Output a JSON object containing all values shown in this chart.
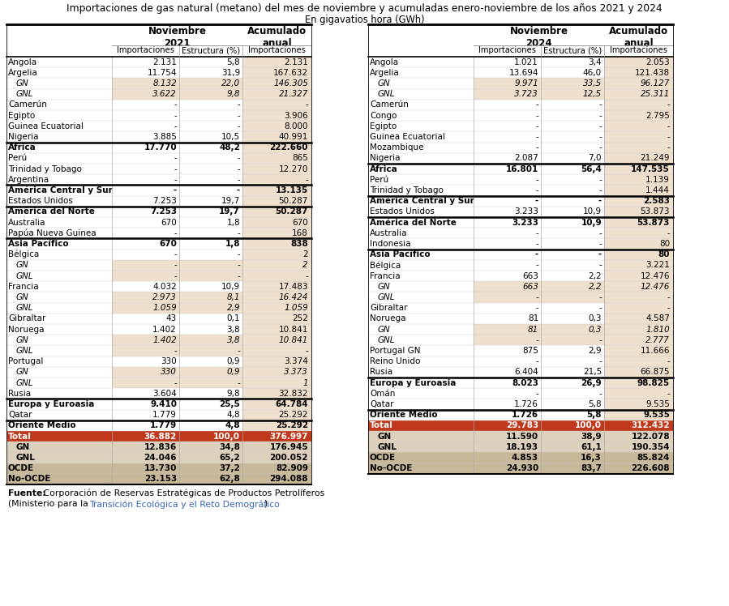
{
  "title_line1": "Importaciones de gas natural (metano) del mes de noviembre y acumuladas enero-noviembre de los años 2021 y 2024",
  "title_line2": "En gigavatios hora (GWh)",
  "left_table": {
    "rows": [
      {
        "label": "Angola",
        "bold": false,
        "italic": false,
        "indent": 0,
        "bg": "white",
        "sub_bg": "white",
        "c1": "2.131",
        "c2": "5,8",
        "c3": "2.131"
      },
      {
        "label": "Argelia",
        "bold": false,
        "italic": false,
        "indent": 0,
        "bg": "white",
        "sub_bg": "white",
        "c1": "11.754",
        "c2": "31,9",
        "c3": "167.632"
      },
      {
        "label": "GN",
        "bold": false,
        "italic": true,
        "indent": 1,
        "bg": "white",
        "sub_bg": "beige",
        "c1": "8.132",
        "c2": "22,0",
        "c3": "146.305"
      },
      {
        "label": "GNL",
        "bold": false,
        "italic": true,
        "indent": 1,
        "bg": "white",
        "sub_bg": "beige",
        "c1": "3.622",
        "c2": "9,8",
        "c3": "21.327"
      },
      {
        "label": "Camerún",
        "bold": false,
        "italic": false,
        "indent": 0,
        "bg": "white",
        "sub_bg": "white",
        "c1": "-",
        "c2": "-",
        "c3": "-"
      },
      {
        "label": "Egipto",
        "bold": false,
        "italic": false,
        "indent": 0,
        "bg": "white",
        "sub_bg": "white",
        "c1": "-",
        "c2": "-",
        "c3": "3.906"
      },
      {
        "label": "Guinea Ecuatorial",
        "bold": false,
        "italic": false,
        "indent": 0,
        "bg": "white",
        "sub_bg": "white",
        "c1": "-",
        "c2": "-",
        "c3": "8.000"
      },
      {
        "label": "Nigeria",
        "bold": false,
        "italic": false,
        "indent": 0,
        "bg": "white",
        "sub_bg": "white",
        "c1": "3.885",
        "c2": "10,5",
        "c3": "40.991"
      },
      {
        "label": "África",
        "bold": true,
        "italic": false,
        "indent": 0,
        "bg": "white",
        "sub_bg": "white",
        "c1": "17.770",
        "c2": "48,2",
        "c3": "222.660",
        "border_top": true
      },
      {
        "label": "Perú",
        "bold": false,
        "italic": false,
        "indent": 0,
        "bg": "white",
        "sub_bg": "white",
        "c1": "-",
        "c2": "-",
        "c3": "865"
      },
      {
        "label": "Trinidad y Tobago",
        "bold": false,
        "italic": false,
        "indent": 0,
        "bg": "white",
        "sub_bg": "white",
        "c1": "-",
        "c2": "-",
        "c3": "12.270"
      },
      {
        "label": "Argentina",
        "bold": false,
        "italic": false,
        "indent": 0,
        "bg": "white",
        "sub_bg": "white",
        "c1": "-",
        "c2": "-",
        "c3": "-"
      },
      {
        "label": "América Central y Sur",
        "bold": true,
        "italic": false,
        "indent": 0,
        "bg": "white",
        "sub_bg": "white",
        "c1": "-",
        "c2": "-",
        "c3": "13.135",
        "border_top": true
      },
      {
        "label": "Estados Unidos",
        "bold": false,
        "italic": false,
        "indent": 0,
        "bg": "white",
        "sub_bg": "white",
        "c1": "7.253",
        "c2": "19,7",
        "c3": "50.287"
      },
      {
        "label": "América del Norte",
        "bold": true,
        "italic": false,
        "indent": 0,
        "bg": "white",
        "sub_bg": "white",
        "c1": "7.253",
        "c2": "19,7",
        "c3": "50.287",
        "border_top": true
      },
      {
        "label": "Australia",
        "bold": false,
        "italic": false,
        "indent": 0,
        "bg": "white",
        "sub_bg": "white",
        "c1": "670",
        "c2": "1,8",
        "c3": "670"
      },
      {
        "label": "Papúa Nueva Guinea",
        "bold": false,
        "italic": false,
        "indent": 0,
        "bg": "white",
        "sub_bg": "white",
        "c1": "-",
        "c2": "-",
        "c3": "168"
      },
      {
        "label": "Asia Pacífico",
        "bold": true,
        "italic": false,
        "indent": 0,
        "bg": "white",
        "sub_bg": "white",
        "c1": "670",
        "c2": "1,8",
        "c3": "838",
        "border_top": true
      },
      {
        "label": "Bélgica",
        "bold": false,
        "italic": false,
        "indent": 0,
        "bg": "white",
        "sub_bg": "white",
        "c1": "-",
        "c2": "-",
        "c3": "2"
      },
      {
        "label": "GN",
        "bold": false,
        "italic": true,
        "indent": 1,
        "bg": "white",
        "sub_bg": "beige",
        "c1": "-",
        "c2": "-",
        "c3": "2"
      },
      {
        "label": "GNL",
        "bold": false,
        "italic": true,
        "indent": 1,
        "bg": "white",
        "sub_bg": "beige",
        "c1": "-",
        "c2": "-",
        "c3": "-"
      },
      {
        "label": "Francia",
        "bold": false,
        "italic": false,
        "indent": 0,
        "bg": "white",
        "sub_bg": "white",
        "c1": "4.032",
        "c2": "10,9",
        "c3": "17.483"
      },
      {
        "label": "GN",
        "bold": false,
        "italic": true,
        "indent": 1,
        "bg": "white",
        "sub_bg": "beige",
        "c1": "2.973",
        "c2": "8,1",
        "c3": "16.424"
      },
      {
        "label": "GNL",
        "bold": false,
        "italic": true,
        "indent": 1,
        "bg": "white",
        "sub_bg": "beige",
        "c1": "1.059",
        "c2": "2,9",
        "c3": "1.059"
      },
      {
        "label": "Gibraltar",
        "bold": false,
        "italic": false,
        "indent": 0,
        "bg": "white",
        "sub_bg": "white",
        "c1": "43",
        "c2": "0,1",
        "c3": "252"
      },
      {
        "label": "Noruega",
        "bold": false,
        "italic": false,
        "indent": 0,
        "bg": "white",
        "sub_bg": "white",
        "c1": "1.402",
        "c2": "3,8",
        "c3": "10.841"
      },
      {
        "label": "GN",
        "bold": false,
        "italic": true,
        "indent": 1,
        "bg": "white",
        "sub_bg": "beige",
        "c1": "1.402",
        "c2": "3,8",
        "c3": "10.841"
      },
      {
        "label": "GNL",
        "bold": false,
        "italic": true,
        "indent": 1,
        "bg": "white",
        "sub_bg": "beige",
        "c1": "-",
        "c2": "-",
        "c3": "-"
      },
      {
        "label": "Portugal",
        "bold": false,
        "italic": false,
        "indent": 0,
        "bg": "white",
        "sub_bg": "white",
        "c1": "330",
        "c2": "0,9",
        "c3": "3.374"
      },
      {
        "label": "GN",
        "bold": false,
        "italic": true,
        "indent": 1,
        "bg": "white",
        "sub_bg": "beige",
        "c1": "330",
        "c2": "0,9",
        "c3": "3.373"
      },
      {
        "label": "GNL",
        "bold": false,
        "italic": true,
        "indent": 1,
        "bg": "white",
        "sub_bg": "beige",
        "c1": "-",
        "c2": "-",
        "c3": "1"
      },
      {
        "label": "Rusia",
        "bold": false,
        "italic": false,
        "indent": 0,
        "bg": "white",
        "sub_bg": "white",
        "c1": "3.604",
        "c2": "9,8",
        "c3": "32.832"
      },
      {
        "label": "Europa y Euroasia",
        "bold": true,
        "italic": false,
        "indent": 0,
        "bg": "white",
        "sub_bg": "white",
        "c1": "9.410",
        "c2": "25,5",
        "c3": "64.784",
        "border_top": true
      },
      {
        "label": "Qatar",
        "bold": false,
        "italic": false,
        "indent": 0,
        "bg": "white",
        "sub_bg": "white",
        "c1": "1.779",
        "c2": "4,8",
        "c3": "25.292"
      },
      {
        "label": "Oriente Medio",
        "bold": true,
        "italic": false,
        "indent": 0,
        "bg": "white",
        "sub_bg": "white",
        "c1": "1.779",
        "c2": "4,8",
        "c3": "25.292",
        "border_top": true
      },
      {
        "label": "Total",
        "bold": true,
        "italic": false,
        "indent": 0,
        "bg": "red",
        "sub_bg": "red",
        "c1": "36.882",
        "c2": "100,0",
        "c3": "376.997"
      },
      {
        "label": "GN",
        "bold": true,
        "italic": false,
        "indent": 1,
        "bg": "lighttan",
        "sub_bg": "lighttan",
        "c1": "12.836",
        "c2": "34,8",
        "c3": "176.945"
      },
      {
        "label": "GNL",
        "bold": true,
        "italic": false,
        "indent": 1,
        "bg": "lighttan",
        "sub_bg": "lighttan",
        "c1": "24.046",
        "c2": "65,2",
        "c3": "200.052"
      },
      {
        "label": "OCDE",
        "bold": true,
        "italic": false,
        "indent": 0,
        "bg": "tan",
        "sub_bg": "tan",
        "c1": "13.730",
        "c2": "37,2",
        "c3": "82.909"
      },
      {
        "label": "No-OCDE",
        "bold": true,
        "italic": false,
        "indent": 0,
        "bg": "tan",
        "sub_bg": "tan",
        "c1": "23.153",
        "c2": "62,8",
        "c3": "294.088"
      }
    ]
  },
  "right_table": {
    "rows": [
      {
        "label": "Angola",
        "bold": false,
        "italic": false,
        "indent": 0,
        "bg": "white",
        "sub_bg": "white",
        "c1": "1.021",
        "c2": "3,4",
        "c3": "2.053"
      },
      {
        "label": "Argelia",
        "bold": false,
        "italic": false,
        "indent": 0,
        "bg": "white",
        "sub_bg": "white",
        "c1": "13.694",
        "c2": "46,0",
        "c3": "121.438"
      },
      {
        "label": "GN",
        "bold": false,
        "italic": true,
        "indent": 1,
        "bg": "white",
        "sub_bg": "beige",
        "c1": "9.971",
        "c2": "33,5",
        "c3": "96.127"
      },
      {
        "label": "GNL",
        "bold": false,
        "italic": true,
        "indent": 1,
        "bg": "white",
        "sub_bg": "beige",
        "c1": "3.723",
        "c2": "12,5",
        "c3": "25.311"
      },
      {
        "label": "Camerún",
        "bold": false,
        "italic": false,
        "indent": 0,
        "bg": "white",
        "sub_bg": "white",
        "c1": "-",
        "c2": "-",
        "c3": "-"
      },
      {
        "label": "Congo",
        "bold": false,
        "italic": false,
        "indent": 0,
        "bg": "white",
        "sub_bg": "white",
        "c1": "-",
        "c2": "-",
        "c3": "2.795"
      },
      {
        "label": "Egipto",
        "bold": false,
        "italic": false,
        "indent": 0,
        "bg": "white",
        "sub_bg": "white",
        "c1": "-",
        "c2": "-",
        "c3": "-"
      },
      {
        "label": "Guinea Ecuatorial",
        "bold": false,
        "italic": false,
        "indent": 0,
        "bg": "white",
        "sub_bg": "white",
        "c1": "-",
        "c2": "-",
        "c3": "-"
      },
      {
        "label": "Mozambique",
        "bold": false,
        "italic": false,
        "indent": 0,
        "bg": "white",
        "sub_bg": "white",
        "c1": "-",
        "c2": "-",
        "c3": "-"
      },
      {
        "label": "Nigeria",
        "bold": false,
        "italic": false,
        "indent": 0,
        "bg": "white",
        "sub_bg": "white",
        "c1": "2.087",
        "c2": "7,0",
        "c3": "21.249"
      },
      {
        "label": "África",
        "bold": true,
        "italic": false,
        "indent": 0,
        "bg": "white",
        "sub_bg": "white",
        "c1": "16.801",
        "c2": "56,4",
        "c3": "147.535",
        "border_top": true
      },
      {
        "label": "Perú",
        "bold": false,
        "italic": false,
        "indent": 0,
        "bg": "white",
        "sub_bg": "white",
        "c1": "-",
        "c2": "-",
        "c3": "1.139"
      },
      {
        "label": "Trinidad y Tobago",
        "bold": false,
        "italic": false,
        "indent": 0,
        "bg": "white",
        "sub_bg": "white",
        "c1": "-",
        "c2": "-",
        "c3": "1.444"
      },
      {
        "label": "América Central y Sur",
        "bold": true,
        "italic": false,
        "indent": 0,
        "bg": "white",
        "sub_bg": "white",
        "c1": "-",
        "c2": "-",
        "c3": "2.583",
        "border_top": true
      },
      {
        "label": "Estados Unidos",
        "bold": false,
        "italic": false,
        "indent": 0,
        "bg": "white",
        "sub_bg": "white",
        "c1": "3.233",
        "c2": "10,9",
        "c3": "53.873"
      },
      {
        "label": "América del Norte",
        "bold": true,
        "italic": false,
        "indent": 0,
        "bg": "white",
        "sub_bg": "white",
        "c1": "3.233",
        "c2": "10,9",
        "c3": "53.873",
        "border_top": true
      },
      {
        "label": "Australia",
        "bold": false,
        "italic": false,
        "indent": 0,
        "bg": "white",
        "sub_bg": "white",
        "c1": "-",
        "c2": "-",
        "c3": "-"
      },
      {
        "label": "Indonesia",
        "bold": false,
        "italic": false,
        "indent": 0,
        "bg": "white",
        "sub_bg": "white",
        "c1": "-",
        "c2": "-",
        "c3": "80"
      },
      {
        "label": "Asia Pacífico",
        "bold": true,
        "italic": false,
        "indent": 0,
        "bg": "white",
        "sub_bg": "white",
        "c1": "-",
        "c2": "-",
        "c3": "80",
        "border_top": true
      },
      {
        "label": "Bélgica",
        "bold": false,
        "italic": false,
        "indent": 0,
        "bg": "white",
        "sub_bg": "white",
        "c1": "-",
        "c2": "-",
        "c3": "3.221"
      },
      {
        "label": "Francia",
        "bold": false,
        "italic": false,
        "indent": 0,
        "bg": "white",
        "sub_bg": "white",
        "c1": "663",
        "c2": "2,2",
        "c3": "12.476"
      },
      {
        "label": "GN",
        "bold": false,
        "italic": true,
        "indent": 1,
        "bg": "white",
        "sub_bg": "beige",
        "c1": "663",
        "c2": "2,2",
        "c3": "12.476"
      },
      {
        "label": "GNL",
        "bold": false,
        "italic": true,
        "indent": 1,
        "bg": "white",
        "sub_bg": "beige",
        "c1": "-",
        "c2": "-",
        "c3": "-"
      },
      {
        "label": "Gibraltar",
        "bold": false,
        "italic": false,
        "indent": 0,
        "bg": "white",
        "sub_bg": "white",
        "c1": "-",
        "c2": "-",
        "c3": "-"
      },
      {
        "label": "Noruega",
        "bold": false,
        "italic": false,
        "indent": 0,
        "bg": "white",
        "sub_bg": "white",
        "c1": "81",
        "c2": "0,3",
        "c3": "4.587"
      },
      {
        "label": "GN",
        "bold": false,
        "italic": true,
        "indent": 1,
        "bg": "white",
        "sub_bg": "beige",
        "c1": "81",
        "c2": "0,3",
        "c3": "1.810"
      },
      {
        "label": "GNL",
        "bold": false,
        "italic": true,
        "indent": 1,
        "bg": "white",
        "sub_bg": "beige",
        "c1": "-",
        "c2": "-",
        "c3": "2.777"
      },
      {
        "label": "Portugal GN",
        "bold": false,
        "italic": false,
        "indent": 0,
        "bg": "white",
        "sub_bg": "white",
        "c1": "875",
        "c2": "2,9",
        "c3": "11.666"
      },
      {
        "label": "Reino Unido",
        "bold": false,
        "italic": false,
        "indent": 0,
        "bg": "white",
        "sub_bg": "white",
        "c1": "-",
        "c2": "-",
        "c3": "-"
      },
      {
        "label": "Rusia",
        "bold": false,
        "italic": false,
        "indent": 0,
        "bg": "white",
        "sub_bg": "white",
        "c1": "6.404",
        "c2": "21,5",
        "c3": "66.875"
      },
      {
        "label": "Europa y Euroasia",
        "bold": true,
        "italic": false,
        "indent": 0,
        "bg": "white",
        "sub_bg": "white",
        "c1": "8.023",
        "c2": "26,9",
        "c3": "98.825",
        "border_top": true
      },
      {
        "label": "Omán",
        "bold": false,
        "italic": false,
        "indent": 0,
        "bg": "white",
        "sub_bg": "white",
        "c1": "-",
        "c2": "-",
        "c3": "-"
      },
      {
        "label": "Qatar",
        "bold": false,
        "italic": false,
        "indent": 0,
        "bg": "white",
        "sub_bg": "white",
        "c1": "1.726",
        "c2": "5,8",
        "c3": "9.535"
      },
      {
        "label": "Oriente Medio",
        "bold": true,
        "italic": false,
        "indent": 0,
        "bg": "white",
        "sub_bg": "white",
        "c1": "1.726",
        "c2": "5,8",
        "c3": "9.535",
        "border_top": true
      },
      {
        "label": "Total",
        "bold": true,
        "italic": false,
        "indent": 0,
        "bg": "red",
        "sub_bg": "red",
        "c1": "29.783",
        "c2": "100,0",
        "c3": "312.432"
      },
      {
        "label": "GN",
        "bold": true,
        "italic": false,
        "indent": 1,
        "bg": "lighttan",
        "sub_bg": "lighttan",
        "c1": "11.590",
        "c2": "38,9",
        "c3": "122.078"
      },
      {
        "label": "GNL",
        "bold": true,
        "italic": false,
        "indent": 1,
        "bg": "lighttan",
        "sub_bg": "lighttan",
        "c1": "18.193",
        "c2": "61,1",
        "c3": "190.354"
      },
      {
        "label": "OCDE",
        "bold": true,
        "italic": false,
        "indent": 0,
        "bg": "tan",
        "sub_bg": "tan",
        "c1": "4.853",
        "c2": "16,3",
        "c3": "85.824"
      },
      {
        "label": "No-OCDE",
        "bold": true,
        "italic": false,
        "indent": 0,
        "bg": "tan",
        "sub_bg": "tan",
        "c1": "24.930",
        "c2": "83,7",
        "c3": "226.608"
      }
    ]
  },
  "colors": {
    "white": "#FFFFFF",
    "beige": "#EEE0CC",
    "lighttan": "#DDD0BC",
    "tan": "#C8B89A",
    "red": "#C0391C",
    "acum_bg": "#EEE0CC"
  }
}
